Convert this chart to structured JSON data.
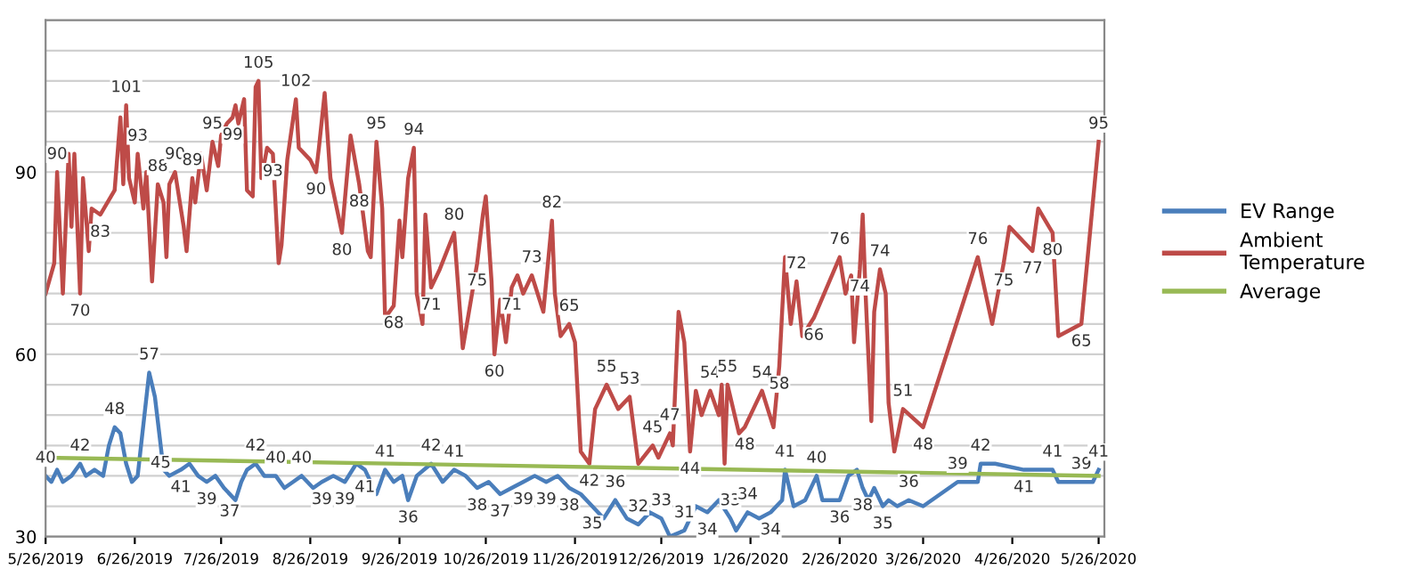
{
  "chart_data": {
    "type": "line",
    "legend": "right",
    "grid": "y",
    "line_style": "solid",
    "xlim": [
      "2019-05-26",
      "2020-05-28"
    ],
    "xticks": [
      {
        "value": "2019-05-26",
        "label": "5/26/2019"
      },
      {
        "value": "2019-06-26",
        "label": "6/26/2019"
      },
      {
        "value": "2019-07-26",
        "label": "7/26/2019"
      },
      {
        "value": "2019-08-26",
        "label": "8/26/2019"
      },
      {
        "value": "2019-09-26",
        "label": "9/26/2019"
      },
      {
        "value": "2019-10-26",
        "label": "10/26/2019"
      },
      {
        "value": "2019-11-26",
        "label": "11/26/2019"
      },
      {
        "value": "2019-12-26",
        "label": "12/26/2019"
      },
      {
        "value": "2020-01-26",
        "label": "1/26/2020"
      },
      {
        "value": "2020-02-26",
        "label": "2/26/2020"
      },
      {
        "value": "2020-03-26",
        "label": "3/26/2020"
      },
      {
        "value": "2020-04-26",
        "label": "4/26/2020"
      },
      {
        "value": "2020-05-26",
        "label": "5/26/2020"
      }
    ],
    "ylim": [
      30,
      115
    ],
    "yticks": [
      30,
      {
        "value": 35,
        "label": null
      },
      {
        "value": 40,
        "label": null
      },
      {
        "value": 45,
        "label": null
      },
      {
        "value": 50,
        "label": null
      },
      {
        "value": 55,
        "label": null
      },
      60,
      {
        "value": 65,
        "label": null
      },
      {
        "value": 70,
        "label": null
      },
      {
        "value": 75,
        "label": null
      },
      {
        "value": 80,
        "label": null
      },
      {
        "value": 85,
        "label": null
      },
      90,
      {
        "value": 95,
        "label": null
      },
      {
        "value": 100,
        "label": null
      },
      {
        "value": 105,
        "label": null
      },
      {
        "value": 110,
        "label": null
      },
      {
        "value": 115,
        "label": null
      }
    ],
    "series": [
      {
        "name": "EV Range",
        "color": "#4a7ebb",
        "value_labels": [
          "40",
          null,
          null,
          null,
          null,
          "42",
          null,
          null,
          null,
          null,
          "48",
          null,
          null,
          null,
          null,
          "57",
          null,
          "45",
          null,
          null,
          "41",
          null,
          null,
          "39",
          null,
          null,
          "37",
          null,
          null,
          null,
          "42",
          null,
          "40",
          null,
          null,
          "40",
          null,
          "39",
          null,
          "39",
          null,
          "41",
          null,
          "41",
          null,
          null,
          "36",
          null,
          "42",
          null,
          "41",
          null,
          "38",
          null,
          "37",
          null,
          "39",
          null,
          "39",
          null,
          "38",
          null,
          "35",
          null,
          "36",
          null,
          "32",
          null,
          "33",
          null,
          "31",
          null,
          "34",
          null,
          "33",
          null,
          "34",
          null,
          "34",
          null,
          "41",
          null,
          null,
          "40",
          null,
          "36",
          null,
          null,
          "38",
          null,
          null,
          "35",
          null,
          null,
          "36",
          null,
          "39",
          null,
          "42",
          null,
          "41",
          "41",
          null,
          "39",
          null,
          "41"
        ],
        "x": [
          "2019-05-26",
          "2019-05-28",
          "2019-05-30",
          "2019-06-01",
          "2019-06-04",
          "2019-06-07",
          "2019-06-09",
          "2019-06-12",
          "2019-06-15",
          "2019-06-17",
          "2019-06-19",
          "2019-06-21",
          "2019-06-23",
          "2019-06-25",
          "2019-06-27",
          "2019-07-01",
          "2019-07-03",
          "2019-07-05",
          "2019-07-06",
          "2019-07-08",
          "2019-07-12",
          "2019-07-15",
          "2019-07-18",
          "2019-07-21",
          "2019-07-24",
          "2019-07-27",
          "2019-07-29",
          "2019-07-31",
          "2019-08-02",
          "2019-08-04",
          "2019-08-07",
          "2019-08-10",
          "2019-08-14",
          "2019-08-17",
          "2019-08-20",
          "2019-08-23",
          "2019-08-27",
          "2019-08-30",
          "2019-09-03",
          "2019-09-07",
          "2019-09-11",
          "2019-09-14",
          "2019-09-18",
          "2019-09-21",
          "2019-09-24",
          "2019-09-27",
          "2019-09-29",
          "2019-10-02",
          "2019-10-07",
          "2019-10-11",
          "2019-10-15",
          "2019-10-19",
          "2019-10-23",
          "2019-10-27",
          "2019-10-31",
          "2019-11-04",
          "2019-11-08",
          "2019-11-12",
          "2019-11-16",
          "2019-11-20",
          "2019-11-24",
          "2019-11-28",
          "2019-12-02",
          "2019-12-06",
          "2019-12-10",
          "2019-12-14",
          "2019-12-18",
          "2019-12-22",
          "2019-12-26",
          "2019-12-29",
          "2020-01-03",
          "2020-01-07",
          "2020-01-11",
          "2020-01-15",
          "2020-01-19",
          "2020-01-21",
          "2020-01-25",
          "2020-01-29",
          "2020-02-02",
          "2020-02-06",
          "2020-02-07",
          "2020-02-10",
          "2020-02-14",
          "2020-02-18",
          "2020-02-20",
          "2020-02-26",
          "2020-02-29",
          "2020-03-03",
          "2020-03-05",
          "2020-03-07",
          "2020-03-09",
          "2020-03-12",
          "2020-03-14",
          "2020-03-17",
          "2020-03-21",
          "2020-03-26",
          "2020-04-07",
          "2020-04-14",
          "2020-04-15",
          "2020-04-20",
          "2020-04-30",
          "2020-05-10",
          "2020-05-12",
          "2020-05-20",
          "2020-05-24",
          "2020-05-26"
        ],
        "values": [
          40,
          39,
          41,
          39,
          40,
          42,
          40,
          41,
          40,
          45,
          48,
          47,
          42,
          39,
          40,
          57,
          53,
          45,
          41,
          40,
          41,
          42,
          40,
          39,
          40,
          38,
          37,
          36,
          39,
          41,
          42,
          40,
          40,
          38,
          39,
          40,
          38,
          39,
          40,
          39,
          42,
          41,
          37,
          41,
          39,
          40,
          36,
          40,
          42,
          39,
          41,
          40,
          38,
          39,
          37,
          38,
          39,
          40,
          39,
          40,
          38,
          37,
          35,
          33,
          36,
          33,
          32,
          34,
          33,
          30,
          31,
          35,
          34,
          36,
          33,
          31,
          34,
          33,
          34,
          36,
          41,
          35,
          36,
          40,
          36,
          36,
          40,
          41,
          38,
          36,
          38,
          35,
          36,
          35,
          36,
          35,
          39,
          39,
          42,
          42,
          41,
          41,
          39,
          39,
          39,
          41
        ]
      },
      {
        "name": "Ambient Temperature",
        "color": "#be4b48",
        "value_labels": [
          null,
          null,
          "90",
          null,
          null,
          null,
          null,
          "70",
          null,
          null,
          null,
          "83",
          null,
          null,
          null,
          "101",
          null,
          null,
          "93",
          null,
          null,
          null,
          "88",
          null,
          null,
          null,
          "90",
          null,
          null,
          "89",
          null,
          null,
          null,
          "95",
          null,
          null,
          null,
          "99",
          null,
          null,
          null,
          null,
          null,
          null,
          "105",
          null,
          null,
          "93",
          null,
          null,
          null,
          "102",
          null,
          null,
          "90",
          null,
          null,
          null,
          "80",
          null,
          "88",
          null,
          null,
          "95",
          null,
          null,
          "68",
          null,
          null,
          null,
          "94",
          null,
          null,
          null,
          "71",
          null,
          "80",
          null,
          "75",
          null,
          null,
          null,
          "60",
          null,
          null,
          "71",
          null,
          null,
          "73",
          null,
          "82",
          null,
          null,
          "65",
          null,
          null,
          "42",
          null,
          "55",
          null,
          "53",
          null,
          "45",
          null,
          "47",
          null,
          null,
          null,
          "44",
          null,
          null,
          "54",
          null,
          null,
          null,
          "55",
          null,
          "48",
          "54",
          null,
          "58",
          null,
          null,
          "72",
          null,
          "66",
          "76",
          null,
          null,
          null,
          "74",
          null,
          null,
          null,
          null,
          "74",
          null,
          null,
          null,
          "51",
          "48",
          "76",
          null,
          "75",
          null,
          "77",
          null,
          "80",
          null,
          "65",
          "95"
        ],
        "x": [
          "2019-05-26",
          "2019-05-29",
          "2019-05-30",
          "2019-06-01",
          "2019-06-03",
          "2019-06-04",
          "2019-06-05",
          "2019-06-07",
          "2019-06-08",
          "2019-06-10",
          "2019-06-11",
          "2019-06-14",
          "2019-06-19",
          "2019-06-21",
          "2019-06-22",
          "2019-06-23",
          "2019-06-24",
          "2019-06-26",
          "2019-06-27",
          "2019-06-29",
          "2019-06-30",
          "2019-07-02",
          "2019-07-04",
          "2019-07-06",
          "2019-07-07",
          "2019-07-08",
          "2019-07-10",
          "2019-07-13",
          "2019-07-14",
          "2019-07-16",
          "2019-07-17",
          "2019-07-19",
          "2019-07-21",
          "2019-07-23",
          "2019-07-25",
          "2019-07-26",
          "2019-07-28",
          "2019-07-30",
          "2019-07-31",
          "2019-08-01",
          "2019-08-03",
          "2019-08-04",
          "2019-08-06",
          "2019-08-07",
          "2019-08-08",
          "2019-08-09",
          "2019-08-11",
          "2019-08-13",
          "2019-08-15",
          "2019-08-16",
          "2019-08-18",
          "2019-08-21",
          "2019-08-22",
          "2019-08-26",
          "2019-08-28",
          "2019-08-29",
          "2019-08-31",
          "2019-09-02",
          "2019-09-06",
          "2019-09-09",
          "2019-09-12",
          "2019-09-15",
          "2019-09-16",
          "2019-09-18",
          "2019-09-20",
          "2019-09-21",
          "2019-09-24",
          "2019-09-26",
          "2019-09-27",
          "2019-09-29",
          "2019-10-01",
          "2019-10-02",
          "2019-10-04",
          "2019-10-05",
          "2019-10-07",
          "2019-10-10",
          "2019-10-15",
          "2019-10-18",
          "2019-10-23",
          "2019-10-25",
          "2019-10-26",
          "2019-10-28",
          "2019-10-29",
          "2019-10-31",
          "2019-11-02",
          "2019-11-04",
          "2019-11-06",
          "2019-11-08",
          "2019-11-11",
          "2019-11-15",
          "2019-11-18",
          "2019-11-19",
          "2019-11-21",
          "2019-11-24",
          "2019-11-26",
          "2019-11-28",
          "2019-12-01",
          "2019-12-03",
          "2019-12-07",
          "2019-12-11",
          "2019-12-15",
          "2019-12-18",
          "2019-12-23",
          "2019-12-25",
          "2019-12-29",
          "2019-12-30",
          "2020-01-01",
          "2020-01-03",
          "2020-01-05",
          "2020-01-07",
          "2020-01-09",
          "2020-01-12",
          "2020-01-15",
          "2020-01-16",
          "2020-01-17",
          "2020-01-18",
          "2020-01-22",
          "2020-01-24",
          "2020-01-30",
          "2020-02-03",
          "2020-02-05",
          "2020-02-07",
          "2020-02-09",
          "2020-02-11",
          "2020-02-13",
          "2020-02-17",
          "2020-02-26",
          "2020-02-28",
          "2020-03-01",
          "2020-03-02",
          "2020-03-04",
          "2020-03-05",
          "2020-03-06",
          "2020-03-08",
          "2020-03-09",
          "2020-03-11",
          "2020-03-13",
          "2020-03-14",
          "2020-03-16",
          "2020-03-19",
          "2020-03-26",
          "2020-04-14",
          "2020-04-19",
          "2020-04-23",
          "2020-04-25",
          "2020-05-03",
          "2020-05-05",
          "2020-05-10",
          "2020-05-12",
          "2020-05-20",
          "2020-05-26"
        ],
        "values": [
          70,
          75,
          90,
          70,
          93,
          81,
          93,
          70,
          89,
          77,
          84,
          83,
          87,
          99,
          88,
          101,
          89,
          85,
          93,
          84,
          90,
          72,
          88,
          85,
          76,
          88,
          90,
          81,
          77,
          89,
          85,
          93,
          87,
          95,
          91,
          96,
          98,
          99,
          101,
          98,
          102,
          87,
          86,
          104,
          105,
          89,
          94,
          93,
          75,
          78,
          92,
          102,
          94,
          92,
          90,
          94,
          103,
          89,
          80,
          96,
          88,
          77,
          76,
          95,
          84,
          66,
          68,
          82,
          76,
          89,
          94,
          70,
          65,
          83,
          71,
          74,
          80,
          61,
          75,
          83,
          86,
          72,
          60,
          69,
          62,
          71,
          73,
          70,
          73,
          67,
          82,
          70,
          63,
          65,
          62,
          44,
          42,
          51,
          55,
          51,
          53,
          42,
          45,
          43,
          47,
          45,
          67,
          62,
          44,
          54,
          50,
          54,
          50,
          55,
          42,
          55,
          47,
          48,
          54,
          48,
          58,
          76,
          65,
          72,
          63,
          66,
          76,
          70,
          73,
          62,
          74,
          83,
          70,
          49,
          67,
          74,
          70,
          52,
          44,
          51,
          48,
          76,
          65,
          75,
          81,
          77,
          84,
          80,
          63,
          65,
          95
        ]
      },
      {
        "name": "Average",
        "color": "#98b954",
        "x": [
          "2019-05-26",
          "2020-05-26"
        ],
        "values": [
          43,
          40
        ]
      }
    ]
  }
}
